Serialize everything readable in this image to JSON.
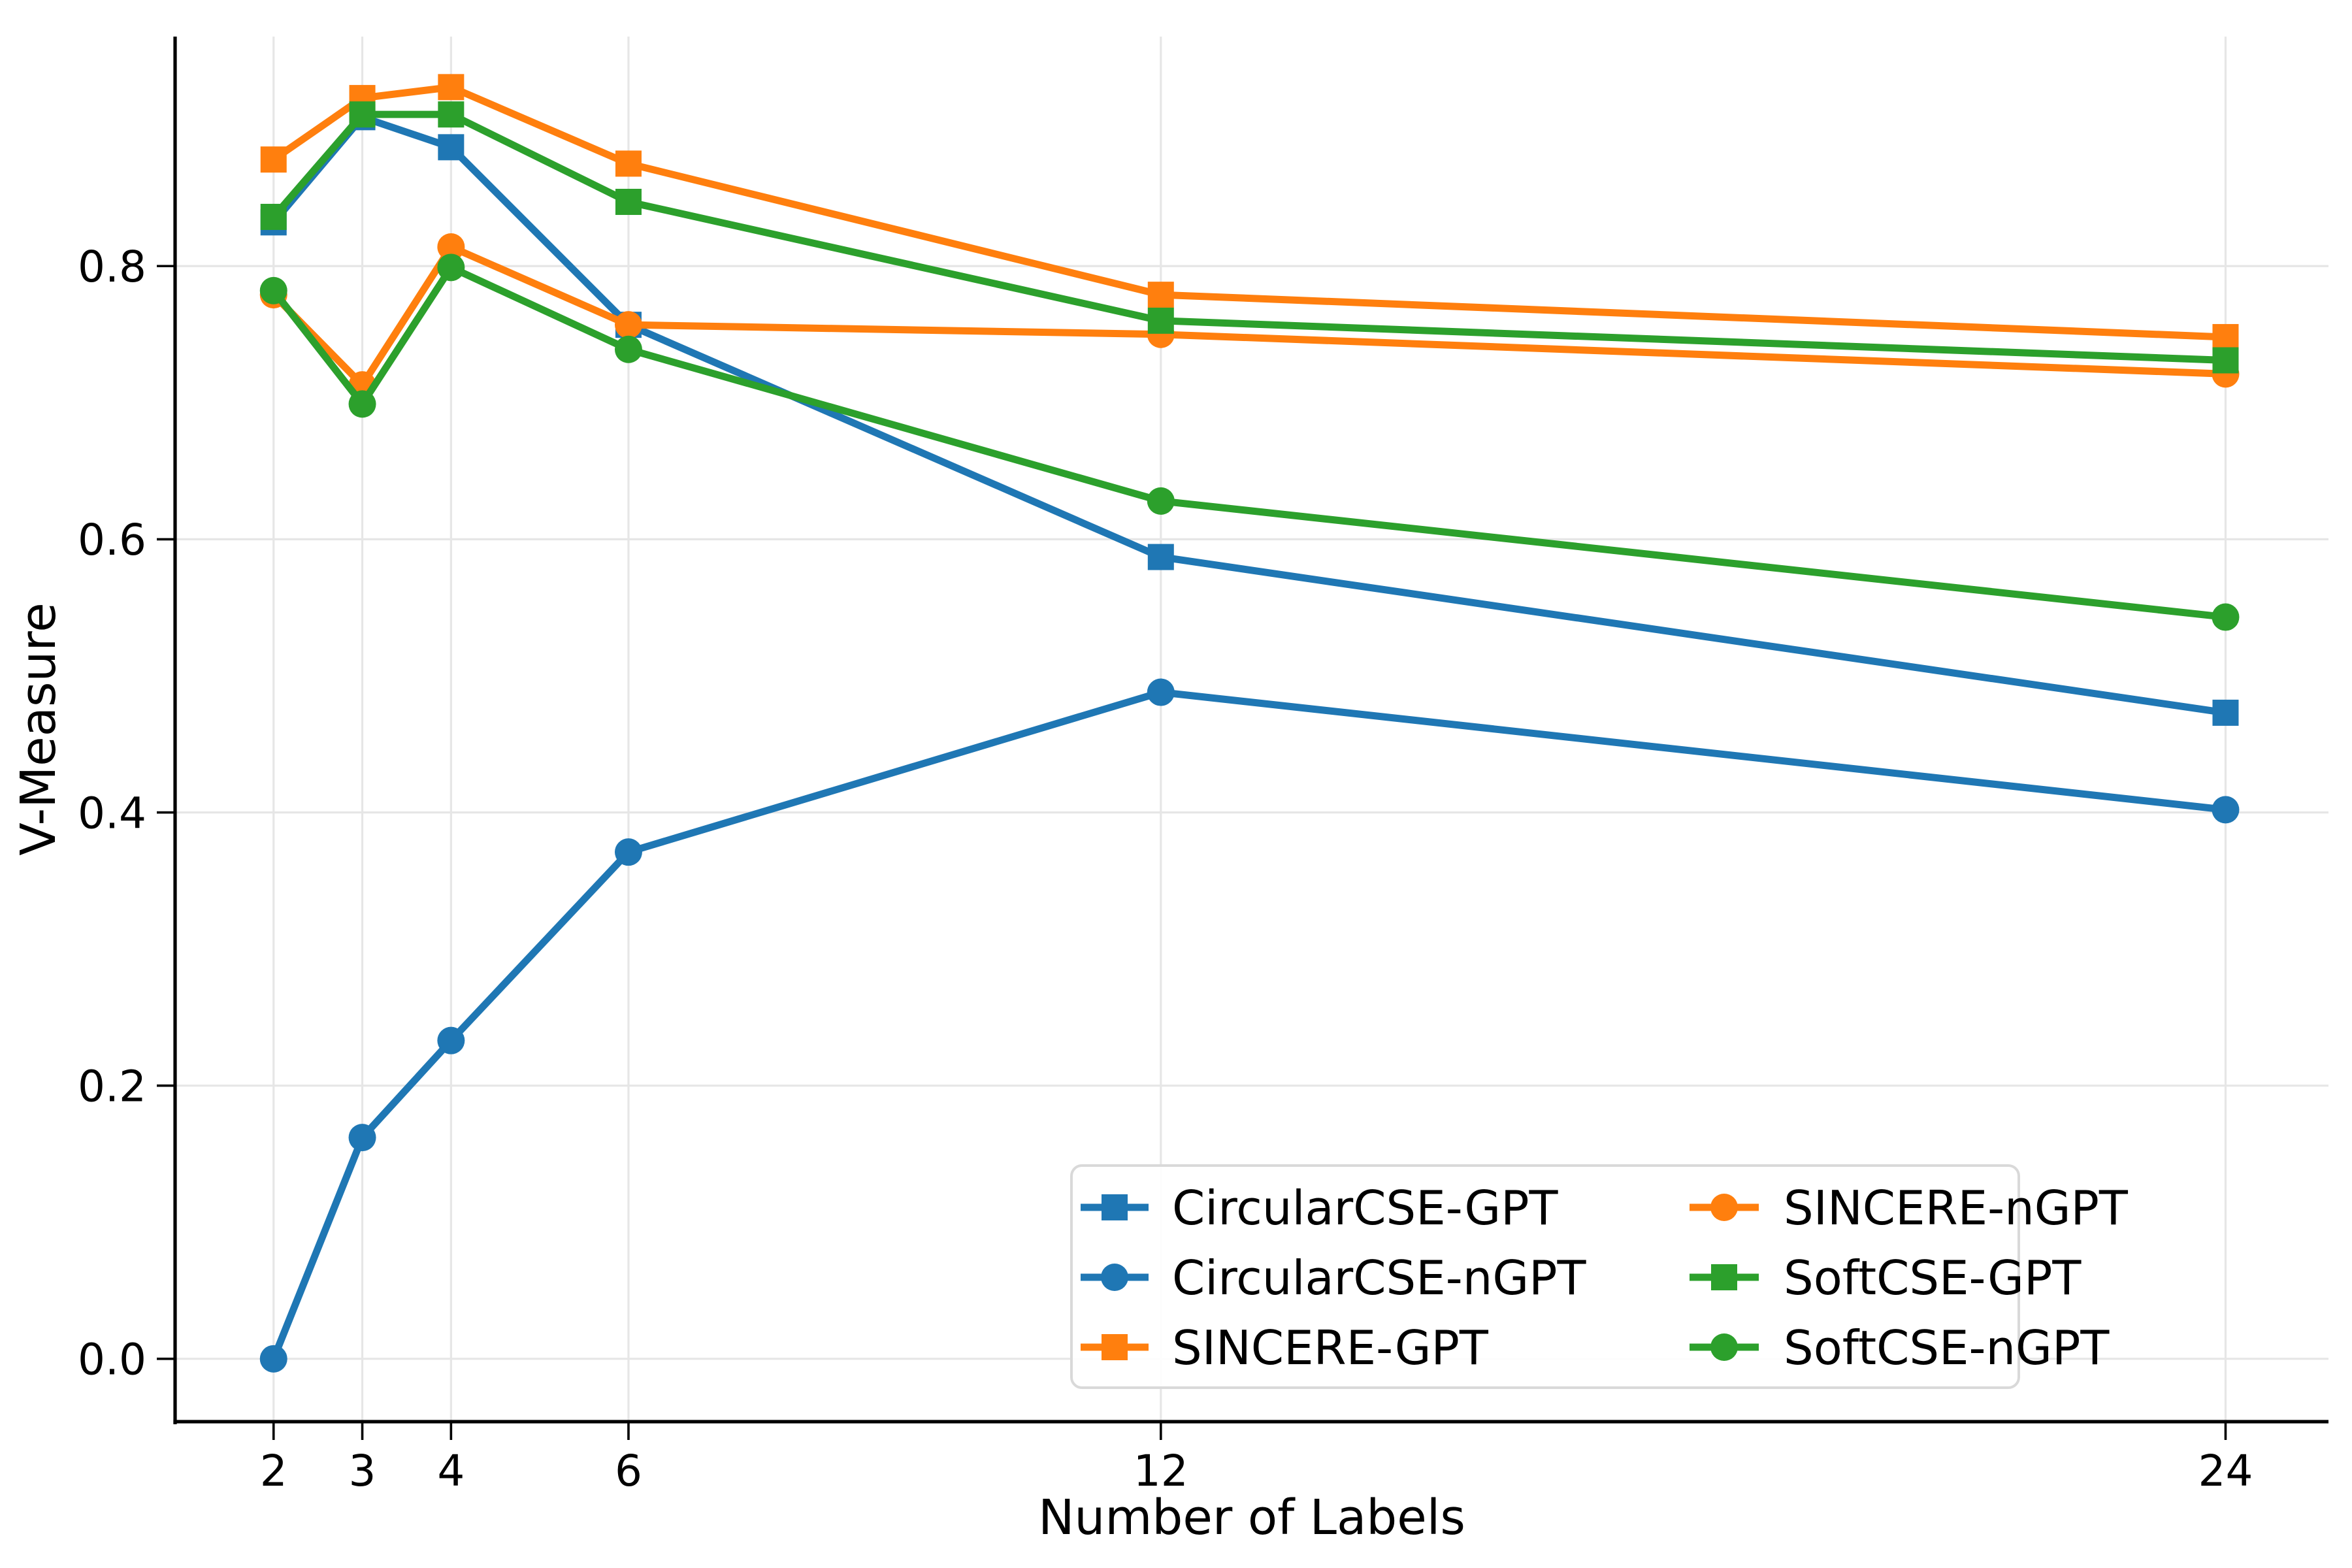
{
  "chart_data": {
    "type": "line",
    "title": "",
    "xlabel": "Number of Labels",
    "ylabel": "V-Measure",
    "x": [
      2,
      3,
      4,
      6,
      12,
      24
    ],
    "xtick_labels": [
      "2",
      "3",
      "4",
      "6",
      "12",
      "24"
    ],
    "yticks": [
      0.0,
      0.2,
      0.4,
      0.6,
      0.8
    ],
    "ytick_labels": [
      "0.0",
      "0.2",
      "0.4",
      "0.6",
      "0.8"
    ],
    "xlim": [
      0.89,
      25.16
    ],
    "ylim": [
      -0.046,
      0.968
    ],
    "grid": true,
    "x_scale": "linear",
    "series": [
      {
        "name": "CircularCSE-GPT",
        "color": "#1f77b4",
        "marker": "square",
        "values": [
          0.832,
          0.909,
          0.887,
          0.757,
          0.587,
          0.473
        ]
      },
      {
        "name": "CircularCSE-nGPT",
        "color": "#1f77b4",
        "marker": "circle",
        "values": [
          0.0,
          0.162,
          0.233,
          0.371,
          0.488,
          0.402
        ]
      },
      {
        "name": "SINCERE-GPT",
        "color": "#ff7f0e",
        "marker": "square",
        "values": [
          0.878,
          0.923,
          0.931,
          0.875,
          0.779,
          0.748
        ]
      },
      {
        "name": "SINCERE-nGPT",
        "color": "#ff7f0e",
        "marker": "circle",
        "values": [
          0.779,
          0.713,
          0.814,
          0.757,
          0.75,
          0.721
        ]
      },
      {
        "name": "SoftCSE-GPT",
        "color": "#2ca02c",
        "marker": "square",
        "values": [
          0.836,
          0.911,
          0.911,
          0.847,
          0.76,
          0.731
        ]
      },
      {
        "name": "SoftCSE-nGPT",
        "color": "#2ca02c",
        "marker": "circle",
        "values": [
          0.782,
          0.699,
          0.799,
          0.739,
          0.628,
          0.543
        ]
      }
    ],
    "legend": {
      "position": "lower right",
      "columns": 2,
      "column_major": true,
      "entries": [
        "CircularCSE-GPT",
        "CircularCSE-nGPT",
        "SINCERE-GPT",
        "SINCERE-nGPT",
        "SoftCSE-GPT",
        "SoftCSE-nGPT"
      ]
    }
  },
  "colors": {
    "background": "#ffffff",
    "grid": "#e6e6e6",
    "axis": "#000000",
    "legend_border": "#d9d9d9",
    "legend_background": "#ffffff"
  }
}
